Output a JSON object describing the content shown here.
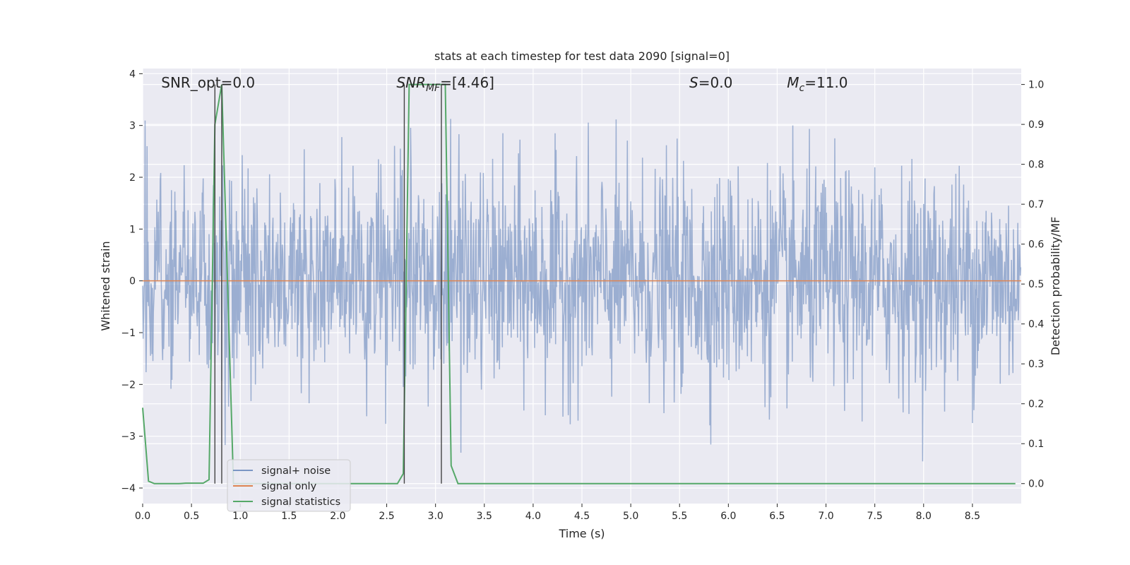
{
  "chart_data": {
    "type": "line",
    "title": "stats at each timestep for test data 2090 [signal=0]",
    "xlabel": "Time (s)",
    "ylabel_left": "Whitened strain",
    "ylabel_right": "Detection probability/MF",
    "xlim": [
      0.0,
      9.0
    ],
    "ylim_left": [
      -4.3,
      4.1
    ],
    "ylim_right": [
      -0.05,
      1.04
    ],
    "x_ticks": [
      0.0,
      0.5,
      1.0,
      1.5,
      2.0,
      2.5,
      3.0,
      3.5,
      4.0,
      4.5,
      5.0,
      5.5,
      6.0,
      6.5,
      7.0,
      7.5,
      8.0,
      8.5
    ],
    "x_tick_labels": [
      "0.0",
      "0.5",
      "1.0",
      "1.5",
      "2.0",
      "2.5",
      "3.0",
      "3.5",
      "4.0",
      "4.5",
      "5.0",
      "5.5",
      "6.0",
      "6.5",
      "7.0",
      "7.5",
      "8.0",
      "8.5"
    ],
    "y_ticks_left": [
      -4,
      -3,
      -2,
      -1,
      0,
      1,
      2,
      3,
      4
    ],
    "y_tick_labels_left": [
      "−4",
      "−3",
      "−2",
      "−1",
      "0",
      "1",
      "2",
      "3",
      "4"
    ],
    "y_ticks_right": [
      0.0,
      0.1,
      0.2,
      0.3,
      0.4,
      0.5,
      0.6,
      0.7,
      0.8,
      0.9,
      1.0
    ],
    "y_tick_labels_right": [
      "0.0",
      "0.1",
      "0.2",
      "0.3",
      "0.4",
      "0.5",
      "0.6",
      "0.7",
      "0.8",
      "0.9",
      "1.0"
    ],
    "grid": true,
    "legend_position": "lower-left",
    "annotations": [
      {
        "text": "SNR_opt=0.0",
        "x": 0.19,
        "y": 3.73
      },
      {
        "text": "SNR_MF=[4.46]",
        "x": 2.6,
        "y": 3.73
      },
      {
        "text": "S=0.0",
        "x": 5.6,
        "y": 3.73
      },
      {
        "text": "M_c=11.0",
        "x": 6.6,
        "y": 3.73
      }
    ],
    "vertical_lines": [
      0.74,
      0.81,
      2.68,
      3.06
    ],
    "vlines_range": [
      0.0,
      1.0
    ],
    "series": [
      {
        "name": "signal+ noise",
        "color": "#4c72b0",
        "alpha": 0.5,
        "axis": "left",
        "duration": 9.0,
        "sample_rate": 200,
        "noise_std": 1.0,
        "peak_range": [
          -3.6,
          3.7
        ]
      },
      {
        "name": "signal only",
        "color": "#dd8452",
        "axis": "left",
        "x": [
          0.0,
          9.0
        ],
        "y": [
          0.0,
          0.0
        ]
      },
      {
        "name": "signal statistics",
        "color": "#55a868",
        "axis": "right",
        "x": [
          0.0,
          0.06,
          0.12,
          0.19,
          0.25,
          0.31,
          0.37,
          0.44,
          0.5,
          0.56,
          0.62,
          0.68,
          0.74,
          0.81,
          0.87,
          0.93,
          0.99,
          1.05,
          1.11,
          1.18,
          1.24,
          1.3,
          1.36,
          1.43,
          1.49,
          1.55,
          1.61,
          1.67,
          1.74,
          1.8,
          1.86,
          1.92,
          1.98,
          2.05,
          2.11,
          2.17,
          2.23,
          2.29,
          2.36,
          2.42,
          2.48,
          2.54,
          2.61,
          2.67,
          2.73,
          2.79,
          2.85,
          2.92,
          2.98,
          3.04,
          3.1,
          3.16,
          3.23,
          3.29,
          3.35,
          3.41,
          3.47,
          3.54,
          3.6,
          3.66,
          3.72,
          3.79,
          3.85,
          3.91,
          3.97,
          4.03,
          4.1,
          4.16,
          4.22,
          4.28,
          4.34,
          4.41,
          4.47,
          4.53,
          4.59,
          4.65,
          4.72,
          4.78,
          4.84,
          4.9,
          4.97,
          5.03,
          5.09,
          5.15,
          5.21,
          5.28,
          5.34,
          5.4,
          5.46,
          5.52,
          5.59,
          5.65,
          5.71,
          5.77,
          5.83,
          5.9,
          5.96,
          6.02,
          6.08,
          6.15,
          6.21,
          6.27,
          6.33,
          6.39,
          6.46,
          6.52,
          6.58,
          6.64,
          6.7,
          6.77,
          6.83,
          6.89,
          6.95,
          7.01,
          7.08,
          7.14,
          7.2,
          7.26,
          7.33,
          7.39,
          7.45,
          7.51,
          7.57,
          7.64,
          7.7,
          7.76,
          7.82,
          7.88,
          7.95,
          8.01,
          8.07,
          8.13,
          8.19,
          8.26,
          8.32,
          8.38,
          8.44,
          8.51,
          8.57,
          8.63,
          8.69,
          8.75,
          8.82,
          8.88,
          8.94
        ],
        "y": [
          0.19,
          0.006,
          0.0,
          0.0,
          0.0,
          0.0,
          0.0,
          0.001,
          0.001,
          0.001,
          0.001,
          0.01,
          0.9,
          1.0,
          0.5,
          0.0,
          0.0,
          0.0,
          0.0,
          0.0,
          0.0,
          0.0,
          0.0,
          0.0,
          0.0,
          0.0,
          0.0,
          0.0,
          0.0,
          0.0,
          0.0,
          0.0,
          0.0,
          0.0,
          0.0,
          0.0,
          0.0,
          0.0,
          0.0,
          0.0,
          0.0,
          0.0,
          0.0,
          0.025,
          1.0,
          1.0,
          1.0,
          1.0,
          1.0,
          1.0,
          1.0,
          0.045,
          0.0,
          0.0,
          0.0,
          0.0,
          0.0,
          0.0,
          0.0,
          0.0,
          0.0,
          0.0,
          0.0,
          0.0,
          0.0,
          0.0,
          0.0,
          0.0,
          0.0,
          0.0,
          0.0,
          0.0,
          0.0,
          0.0,
          0.0,
          0.0,
          0.0,
          0.0,
          0.0,
          0.0,
          0.0,
          0.0,
          0.0,
          0.0,
          0.0,
          0.0,
          0.0,
          0.0,
          0.0,
          0.0,
          0.0,
          0.0,
          0.0,
          0.0,
          0.0,
          0.0,
          0.0,
          0.0,
          0.0,
          0.0,
          0.0,
          0.0,
          0.0,
          0.0,
          0.0,
          0.0,
          0.0,
          0.0,
          0.0,
          0.0,
          0.0,
          0.0,
          0.0,
          0.0,
          0.0,
          0.0,
          0.0,
          0.0,
          0.0,
          0.0,
          0.0,
          0.0,
          0.0,
          0.0,
          0.0,
          0.0,
          0.0,
          0.0,
          0.0,
          0.0,
          0.0,
          0.0,
          0.0,
          0.0,
          0.0,
          0.0,
          0.0,
          0.0,
          0.0,
          0.0,
          0.0,
          0.0,
          0.0,
          0.0,
          0.0
        ]
      }
    ]
  },
  "colors": {
    "plot_background": "#eaeaf2",
    "grid": "#ffffff",
    "vline": "#444444"
  }
}
